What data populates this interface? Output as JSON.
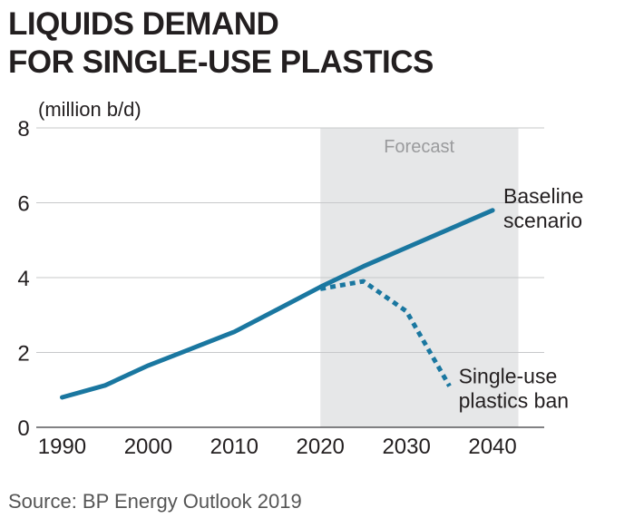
{
  "title_lines": [
    "LIQUIDS DEMAND",
    "FOR SINGLE-USE PLASTICS"
  ],
  "source": "Source: BP Energy Outlook 2019",
  "chart_data": {
    "type": "line",
    "title": "LIQUIDS DEMAND FOR SINGLE-USE PLASTICS",
    "ylabel": "(million b/d)",
    "xlabel": "",
    "xlim": [
      1987,
      2046
    ],
    "ylim": [
      0,
      8
    ],
    "x_ticks": [
      1990,
      2000,
      2010,
      2020,
      2030,
      2040
    ],
    "x_tick_labels": [
      "1990",
      "2000",
      "2010",
      "2020",
      "2030",
      "2040"
    ],
    "y_ticks": [
      0,
      2,
      4,
      6,
      8
    ],
    "y_tick_labels": [
      "0",
      "2",
      "4",
      "6",
      "8"
    ],
    "grid": "horizontal",
    "forecast_region": {
      "label": "Forecast",
      "x_start": 2020,
      "x_end": 2043,
      "color": "#e6e7e8"
    },
    "series": [
      {
        "name": "Baseline scenario",
        "label_lines": [
          "Baseline",
          "scenario"
        ],
        "style": "solid",
        "color": "#1a77a0",
        "x": [
          1990,
          1995,
          2000,
          2005,
          2010,
          2015,
          2020,
          2025,
          2030,
          2035,
          2040
        ],
        "y": [
          0.8,
          1.12,
          1.65,
          2.1,
          2.55,
          3.15,
          3.75,
          4.3,
          4.8,
          5.3,
          5.8
        ]
      },
      {
        "name": "Single-use plastics ban",
        "label_lines": [
          "Single-use",
          "plastics ban"
        ],
        "style": "dotted",
        "color": "#1a77a0",
        "x": [
          2020,
          2025,
          2030,
          2035
        ],
        "y": [
          3.7,
          3.9,
          3.1,
          1.1
        ]
      }
    ]
  }
}
